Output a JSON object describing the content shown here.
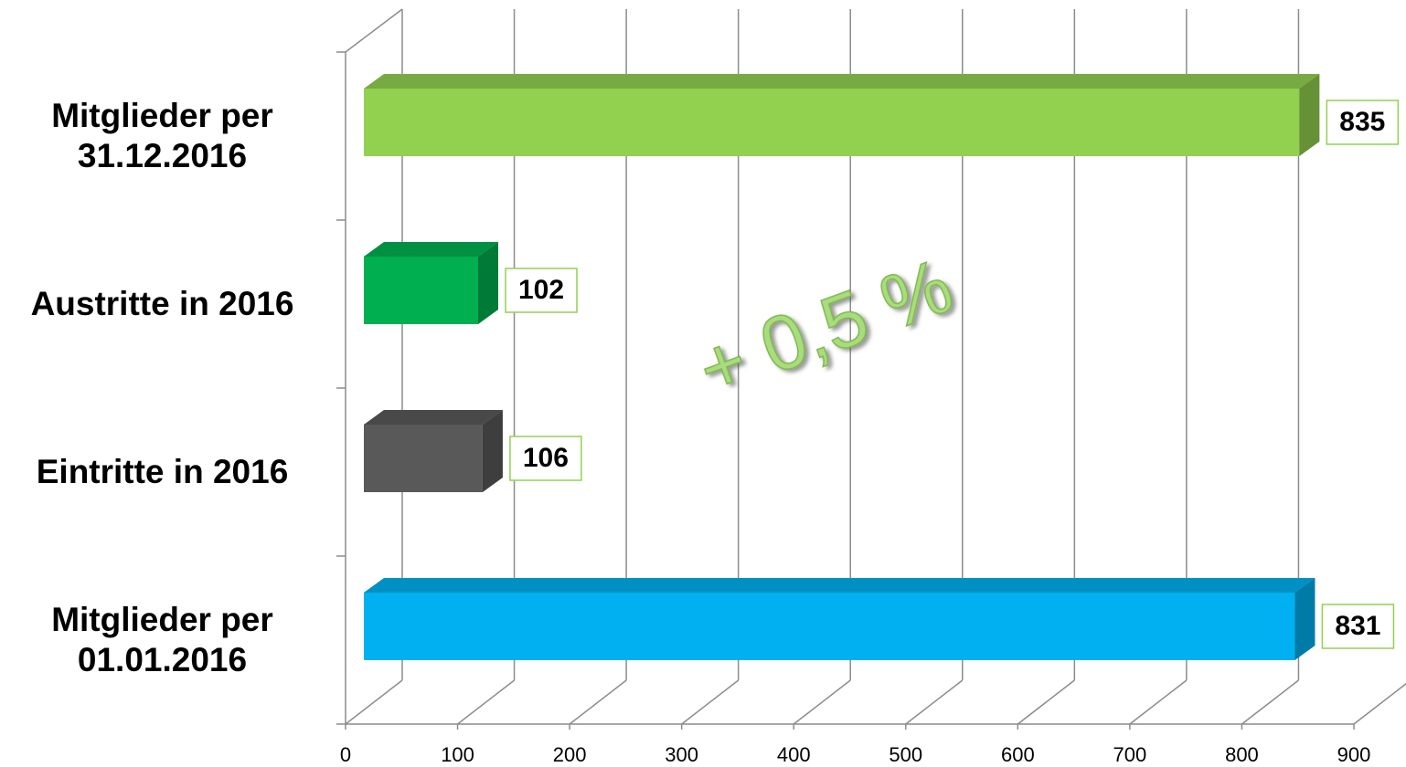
{
  "chart_data": {
    "type": "bar3d_horizontal",
    "categories": [
      "Mitglieder per 31.12.2016",
      "Austritte in 2016",
      "Eintritte in 2016",
      "Mitglieder per 01.01.2016"
    ],
    "values": [
      835,
      102,
      106,
      831
    ],
    "colors": [
      "#92d050",
      "#00b050",
      "#595959",
      "#00b0f0"
    ],
    "xlim": [
      0,
      900
    ],
    "xticks": [
      0,
      100,
      200,
      300,
      400,
      500,
      600,
      700,
      800,
      900
    ],
    "grid": true,
    "annotation": "+ 0,5 %"
  }
}
